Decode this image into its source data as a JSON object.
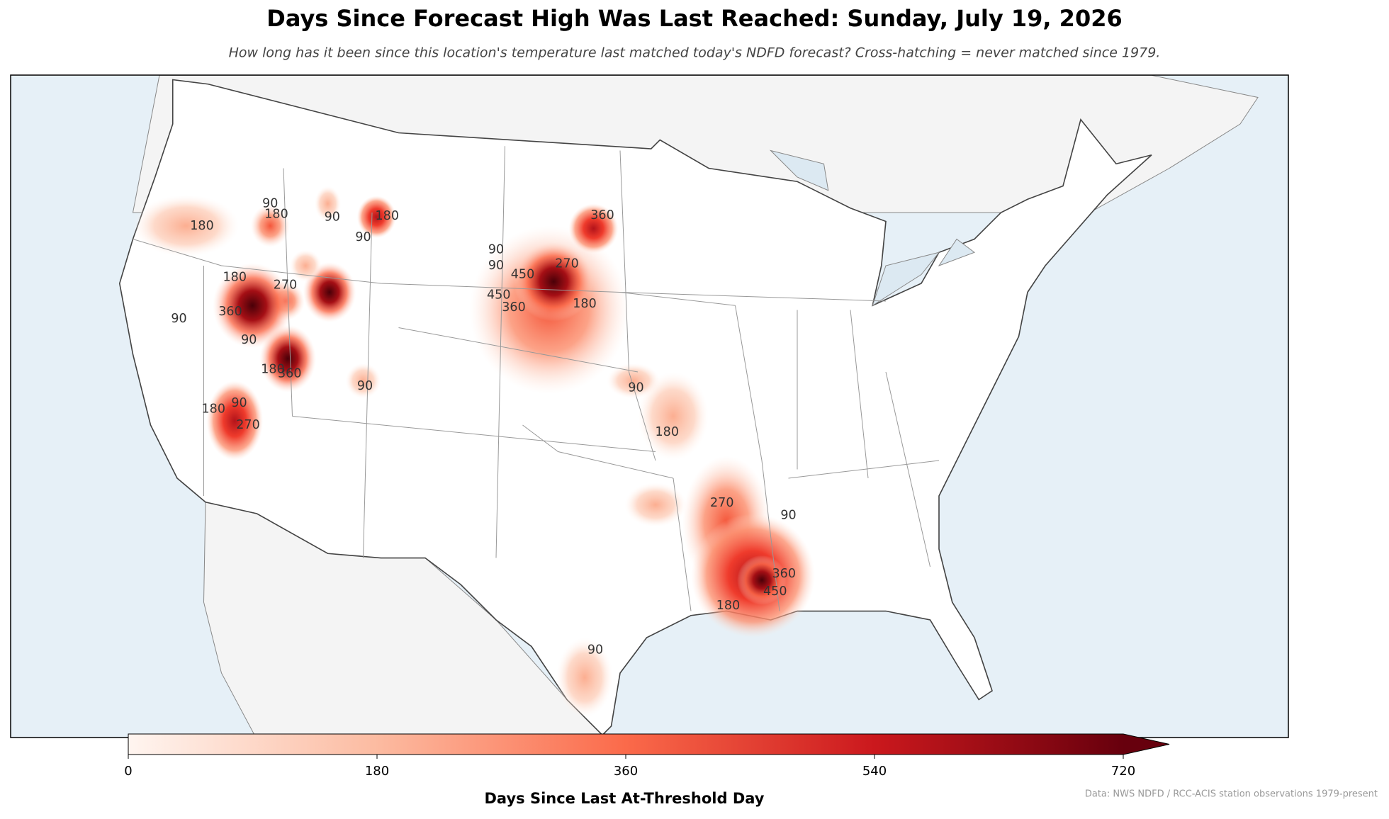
{
  "map": {
    "title": "Days Since Forecast High Was Last Reached: Sunday, July 19, 2026",
    "subtitle": "How long has it been since this location's temperature last matched today's NDFD forecast? Cross-hatching = never matched since 1979.",
    "contour_labels": [
      90,
      180,
      180,
      90,
      90,
      180,
      180,
      270,
      360,
      90,
      90,
      180,
      360,
      180,
      90,
      270,
      90,
      90,
      450,
      450,
      360,
      270,
      180,
      360,
      90,
      180,
      270,
      90,
      360,
      450,
      180,
      90,
      90
    ],
    "colorbar": {
      "label": "Days Since Last At-Threshold Day",
      "lim": [
        0,
        720
      ],
      "ticks": [
        0,
        180,
        360,
        540,
        720
      ]
    },
    "source": "Data: NWS NDFD / RCC-ACIS station observations 1979-present"
  }
}
